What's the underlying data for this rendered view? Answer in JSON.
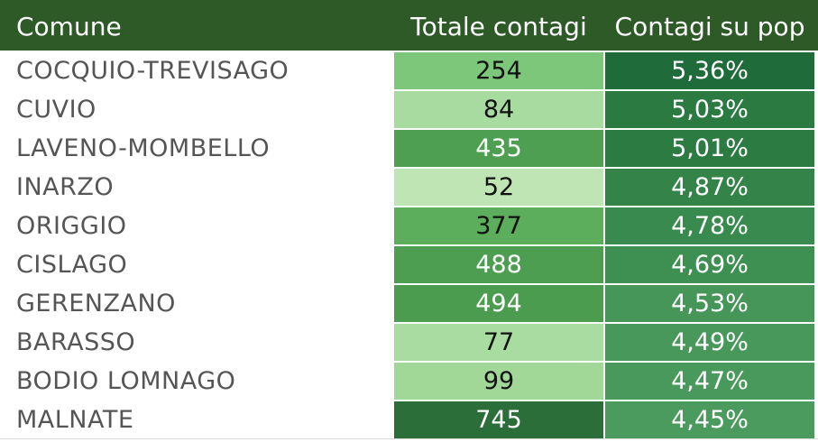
{
  "table": {
    "headers": {
      "comune": "Comune",
      "totale": "Totale contagi",
      "pop": "Contagi su pop"
    },
    "rows": [
      {
        "comune": "COCQUIO-TREVISAGO",
        "totale": "254",
        "pop": "5,36%"
      },
      {
        "comune": "CUVIO",
        "totale": "84",
        "pop": "5,03%"
      },
      {
        "comune": "LAVENO-MOMBELLO",
        "totale": "435",
        "pop": "5,01%"
      },
      {
        "comune": "INARZO",
        "totale": "52",
        "pop": "4,87%"
      },
      {
        "comune": "ORIGGIO",
        "totale": "377",
        "pop": "4,78%"
      },
      {
        "comune": "CISLAGO",
        "totale": "488",
        "pop": "4,69%"
      },
      {
        "comune": "GERENZANO",
        "totale": "494",
        "pop": "4,53%"
      },
      {
        "comune": "BARASSO",
        "totale": "77",
        "pop": "4,49%"
      },
      {
        "comune": "BODIO LOMNAGO",
        "totale": "99",
        "pop": "4,47%"
      },
      {
        "comune": "MALNATE",
        "totale": "745",
        "pop": "4,45%"
      }
    ]
  },
  "colors": {
    "header_bg": "#2d5a27",
    "totale_cells": [
      "#7cc77a",
      "#a8dba0",
      "#4f9f52",
      "#bfe5b5",
      "#5cae5c",
      "#4e9e52",
      "#4c9c50",
      "#a9dca1",
      "#a1d898",
      "#2b6e3a"
    ],
    "totale_text": [
      "#111111",
      "#111111",
      "#ffffff",
      "#111111",
      "#111111",
      "#ffffff",
      "#ffffff",
      "#111111",
      "#111111",
      "#ffffff"
    ],
    "pop_cells": [
      "#1f6b3a",
      "#2b7a42",
      "#2c7b43",
      "#34844a",
      "#398a4e",
      "#3e8f52",
      "#46965a",
      "#48985b",
      "#4a995c",
      "#4b9a5e"
    ]
  },
  "chart_data": {
    "type": "table",
    "columns": [
      "Comune",
      "Totale contagi",
      "Contagi su pop"
    ],
    "rows": [
      [
        "COCQUIO-TREVISAGO",
        254,
        "5,36%"
      ],
      [
        "CUVIO",
        84,
        "5,03%"
      ],
      [
        "LAVENO-MOMBELLO",
        435,
        "5,01%"
      ],
      [
        "INARZO",
        52,
        "4,87%"
      ],
      [
        "ORIGGIO",
        377,
        "4,78%"
      ],
      [
        "CISLAGO",
        488,
        "4,69%"
      ],
      [
        "GERENZANO",
        494,
        "4,53%"
      ],
      [
        "BARASSO",
        77,
        "4,49%"
      ],
      [
        "BODIO LOMNAGO",
        99,
        "4,47%"
      ],
      [
        "MALNATE",
        745,
        "4,45%"
      ]
    ]
  }
}
